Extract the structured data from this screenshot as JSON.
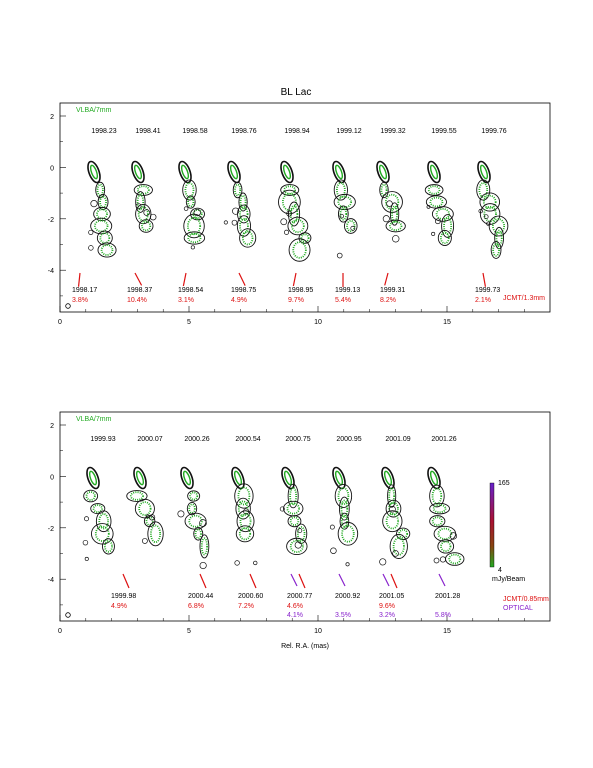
{
  "title": "BL Lac",
  "colors": {
    "green_label": "#22aa22",
    "red": "#dd1111",
    "purple": "#8822cc",
    "contour": "#111111",
    "contour_fill": "#22aa22"
  },
  "top_panel": {
    "survey_label": "VLBA/7mm",
    "epochs": [
      "1998.23",
      "1998.41",
      "1998.58",
      "1998.76",
      "1998.94",
      "1999.12",
      "1999.32",
      "1999.55",
      "1999.76"
    ],
    "pol_epochs": [
      "1998.17",
      "1998.37",
      "1998.54",
      "1998.75",
      "1998.95",
      "1999.13",
      "1999.31",
      "1999.73"
    ],
    "pol_percent": [
      "3.8%",
      "10.4%",
      "3.1%",
      "4.9%",
      "9.7%",
      "5.4%",
      "8.2%",
      "2.1%"
    ],
    "instrument": "JCMT/1.3mm",
    "x_ticks": [
      "0",
      "5",
      "10",
      "15"
    ],
    "y_ticks": [
      "2",
      "0",
      "-2",
      "-4"
    ]
  },
  "bottom_panel": {
    "survey_label": "VLBA/7mm",
    "epochs": [
      "1999.93",
      "2000.07",
      "2000.26",
      "2000.54",
      "2000.75",
      "2000.95",
      "2001.09",
      "2001.26"
    ],
    "pol_epochs": [
      "1999.98",
      "2000.44",
      "2000.60",
      "2000.77",
      "2000.92",
      "2001.05",
      "2001.28"
    ],
    "pol_percent_red": [
      "4.9%",
      "6.8%",
      "7.2%",
      "4.6%",
      "9.6%"
    ],
    "pol_percent_optical": [
      "4.1%",
      "3.5%",
      "3.2%",
      "5.8%"
    ],
    "instrument": "JCMT/0.85mm",
    "optical": "OPTICAL",
    "colorbar_max": "165",
    "colorbar_min": "4",
    "colorbar_unit": "mJy/Beam",
    "x_ticks": [
      "0",
      "5",
      "10",
      "15"
    ],
    "y_ticks": [
      "2",
      "0",
      "-2",
      "-4"
    ],
    "xlabel": "Rel. R.A. (mas)"
  }
}
